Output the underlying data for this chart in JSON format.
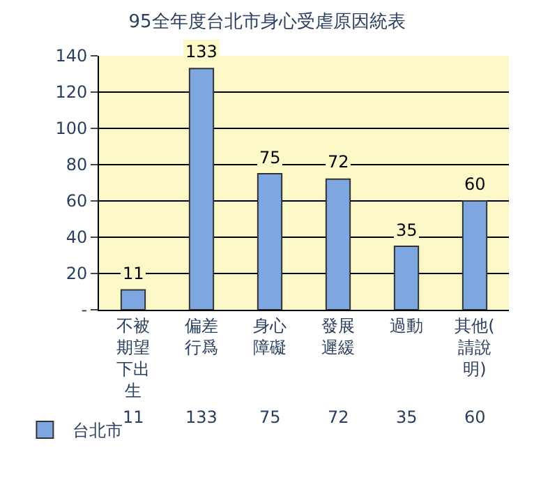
{
  "chart_data": {
    "type": "bar",
    "title": "95全年度台北市身心受虐原因統表",
    "categories": [
      "不被期望下出生",
      "偏差行爲",
      "身心障礙",
      "發展遲緩",
      "過動",
      "其他(請說明)"
    ],
    "series": [
      {
        "name": "台北市",
        "color": "#7ea6e0",
        "values": [
          11,
          133,
          75,
          72,
          35,
          60
        ],
        "value_labels": [
          "11",
          "133",
          "75",
          "72",
          "35",
          "60"
        ]
      }
    ],
    "ylim": [
      0,
      140
    ],
    "yticks": [
      {
        "value": 0,
        "label": "-"
      },
      20,
      40,
      60,
      80,
      100,
      120,
      140
    ],
    "grid": "y",
    "data_labels": true,
    "legend": "bottom left"
  }
}
